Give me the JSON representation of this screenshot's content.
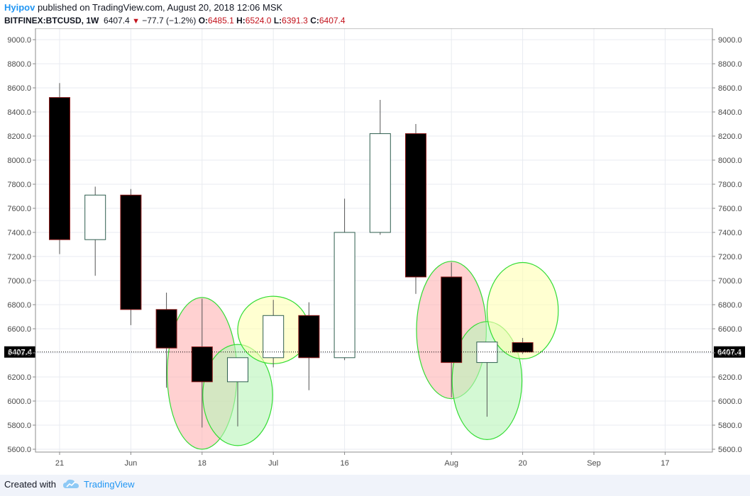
{
  "header": {
    "author": "Hyipov",
    "published_text": " published on TradingView.com, August 20, 2018 12:06 MSK",
    "symbol_tf": "BITFINEX:BTCUSD, 1W",
    "last": "6407.4",
    "change": "−77.7 (−1.2%)",
    "o_label": "O:",
    "o_value": "6485.1",
    "h_label": "H:",
    "h_value": "6524.0",
    "l_label": "L:",
    "l_value": "6391.3",
    "c_label": "C:",
    "c_value": "6407.4"
  },
  "footer": {
    "created_text": "Created with",
    "brand": "TradingView"
  },
  "colors": {
    "down_fill": "#000000",
    "up_fill": "#ffffff",
    "down_border": "#8b1a1a",
    "up_border": "#2e5e4e",
    "wick": "#555555",
    "ellipse_red": "#ffb3b3",
    "ellipse_green": "#b8f5b8",
    "ellipse_yellow": "#ffffb3",
    "ellipse_stroke": "#33dd33",
    "grid": "#e8ebf0"
  },
  "chart_data": {
    "type": "candlestick",
    "symbol": "BITFINEX:BTCUSD",
    "timeframe": "1W",
    "ylim": [
      5600,
      9100
    ],
    "y_ticks": [
      9000,
      8800,
      8600,
      8400,
      8200,
      8000,
      7800,
      7600,
      7400,
      7200,
      7000,
      6800,
      6600,
      6400,
      6200,
      6000,
      5800,
      5600
    ],
    "y_tick_labels": [
      "9000.0",
      "8800.0",
      "8600.0",
      "8400.0",
      "8200.0",
      "8000.0",
      "7800.0",
      "7600.0",
      "7400.0",
      "7200.0",
      "7000.0",
      "6800.0",
      "6600.0",
      "6400.0",
      "6200.0",
      "6000.0",
      "5800.0",
      "5600.0"
    ],
    "x_tick_labels": [
      "21",
      "Jun",
      "18",
      "Jul",
      "16",
      "Aug",
      "20",
      "Sep",
      "17"
    ],
    "x_tick_index": [
      0,
      2,
      4,
      6,
      8,
      11,
      13,
      15,
      17
    ],
    "last_price": 6407.4,
    "last_price_label": "6407.4",
    "candles": [
      {
        "week": "May 21",
        "open": 8520,
        "high": 8640,
        "low": 7220,
        "close": 7340
      },
      {
        "week": "May 28",
        "open": 7340,
        "high": 7780,
        "low": 7040,
        "close": 7710
      },
      {
        "week": "Jun 4",
        "open": 7710,
        "high": 7760,
        "low": 6630,
        "close": 6760
      },
      {
        "week": "Jun 11",
        "open": 6760,
        "high": 6900,
        "low": 6110,
        "close": 6440
      },
      {
        "week": "Jun 18",
        "open": 6450,
        "high": 6850,
        "low": 5780,
        "close": 6160
      },
      {
        "week": "Jun 25",
        "open": 6160,
        "high": 6360,
        "low": 5790,
        "close": 6360
      },
      {
        "week": "Jul 2",
        "open": 6360,
        "high": 6840,
        "low": 6280,
        "close": 6710
      },
      {
        "week": "Jul 9",
        "open": 6710,
        "high": 6820,
        "low": 6090,
        "close": 6360
      },
      {
        "week": "Jul 16",
        "open": 6360,
        "high": 7680,
        "low": 6340,
        "close": 7400
      },
      {
        "week": "Jul 23",
        "open": 7400,
        "high": 8500,
        "low": 7380,
        "close": 8220
      },
      {
        "week": "Jul 30",
        "open": 8220,
        "high": 8300,
        "low": 6890,
        "close": 7030
      },
      {
        "week": "Aug 6",
        "open": 7030,
        "high": 7150,
        "low": 6030,
        "close": 6320
      },
      {
        "week": "Aug 13",
        "open": 6320,
        "high": 6490,
        "low": 5870,
        "close": 6490
      },
      {
        "week": "Aug 20",
        "open": 6485.1,
        "high": 6524.0,
        "low": 6391.3,
        "close": 6407.4
      }
    ],
    "annotations": [
      {
        "shape": "ellipse",
        "color": "red",
        "center_index": 4,
        "center_price": 6230,
        "radius_weeks": 0.98,
        "radius_price": 630
      },
      {
        "shape": "ellipse",
        "color": "green",
        "center_index": 5,
        "center_price": 6050,
        "radius_weeks": 0.98,
        "radius_price": 420
      },
      {
        "shape": "ellipse",
        "color": "yellow",
        "center_index": 6,
        "center_price": 6590,
        "radius_weeks": 1.0,
        "radius_price": 280
      },
      {
        "shape": "ellipse",
        "color": "red",
        "center_index": 11,
        "center_price": 6590,
        "radius_weeks": 0.98,
        "radius_price": 570
      },
      {
        "shape": "ellipse",
        "color": "green",
        "center_index": 12,
        "center_price": 6170,
        "radius_weeks": 0.98,
        "radius_price": 490
      },
      {
        "shape": "ellipse",
        "color": "yellow",
        "center_index": 13,
        "center_price": 6750,
        "radius_weeks": 1.0,
        "radius_price": 400
      }
    ]
  }
}
